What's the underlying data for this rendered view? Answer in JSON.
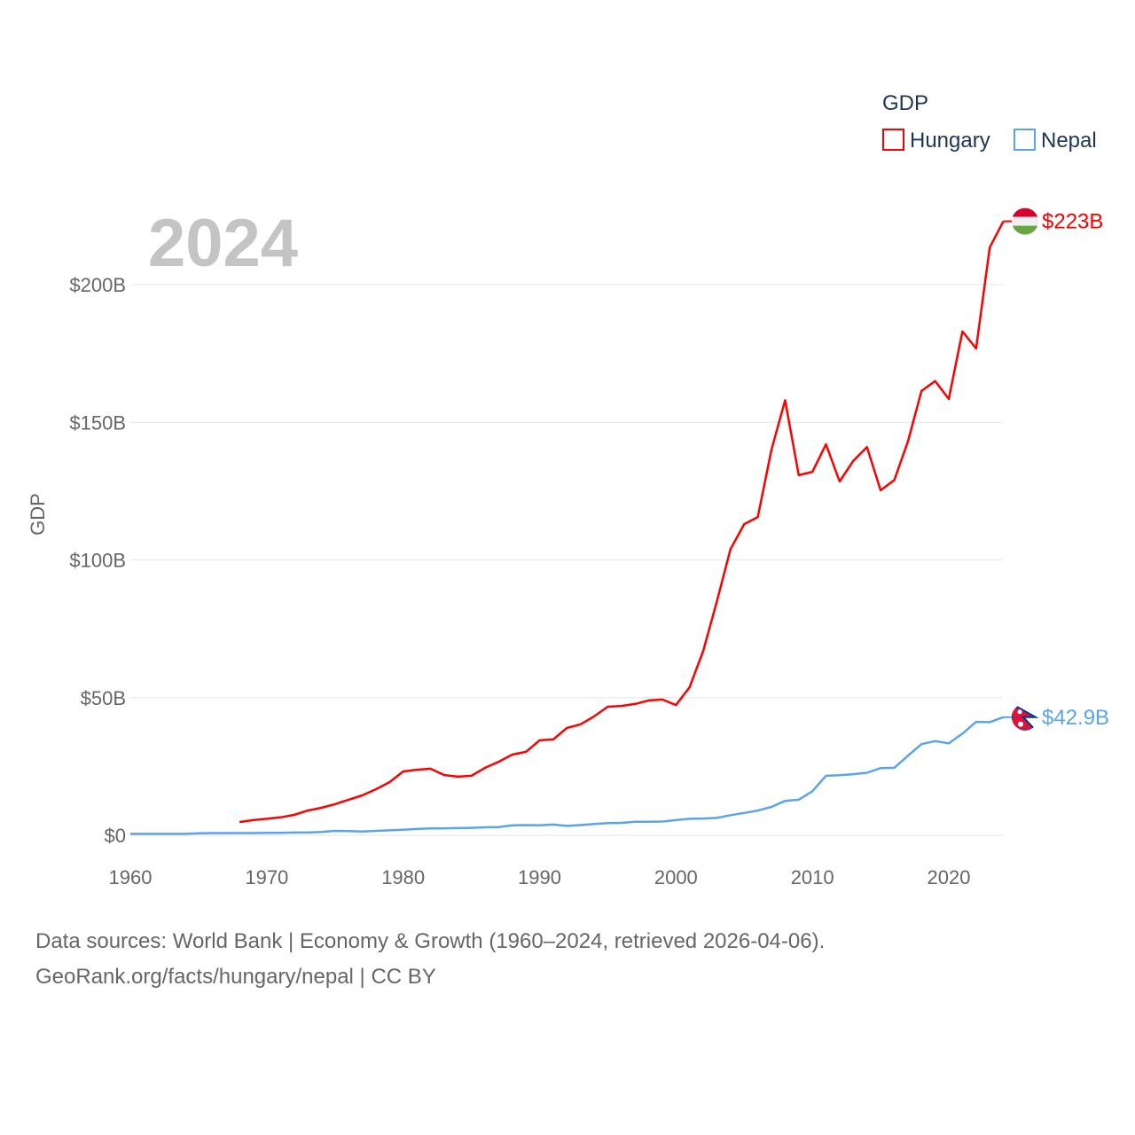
{
  "chart_data": {
    "type": "line",
    "title": "2024",
    "xlabel": "",
    "ylabel": "GDP",
    "xlim": [
      1960,
      2024
    ],
    "ylim": [
      0,
      200
    ],
    "x_ticks": [
      1960,
      1970,
      1980,
      1990,
      2000,
      2010,
      2020
    ],
    "x_tick_labels": [
      "1960",
      "1970",
      "1980",
      "1990",
      "2000",
      "2010",
      "2020"
    ],
    "y_ticks": [
      0,
      50,
      100,
      150,
      200
    ],
    "y_tick_labels": [
      "$0",
      "$50B",
      "$100B",
      "$150B",
      "$200B"
    ],
    "grid": true,
    "legend": {
      "title": "GDP",
      "placement": "top-right"
    },
    "series": [
      {
        "name": "Hungary",
        "color": "#ff0000",
        "end_label": "$223B",
        "start_year": 1968,
        "values": [
          4.8,
          5.5,
          6.0,
          6.5,
          7.4,
          9.0,
          10.0,
          11.3,
          12.9,
          14.5,
          16.7,
          19.3,
          23.2,
          23.8,
          24.2,
          21.9,
          21.3,
          21.6,
          24.5,
          26.7,
          29.3,
          30.3,
          34.5,
          34.8,
          39.0,
          40.3,
          43.2,
          46.7,
          47.0,
          47.7,
          49.0,
          49.3,
          47.3,
          53.8,
          67.0,
          85.0,
          104.0,
          113.0,
          115.6,
          140.0,
          158.0,
          130.8,
          132.0,
          142.0,
          128.5,
          136.0,
          141.0,
          125.3,
          129.0,
          143.0,
          161.4,
          165.0,
          158.5,
          183.0,
          176.8,
          213.5,
          223.0
        ]
      },
      {
        "name": "Nepal",
        "color": "#5ba4ec",
        "end_label": "$42.9B",
        "start_year": 1960,
        "values": [
          0.5,
          0.5,
          0.5,
          0.5,
          0.5,
          0.7,
          0.8,
          0.8,
          0.8,
          0.8,
          0.9,
          0.9,
          1.0,
          1.0,
          1.2,
          1.6,
          1.5,
          1.4,
          1.6,
          1.8,
          2.0,
          2.3,
          2.5,
          2.5,
          2.6,
          2.7,
          2.9,
          3.0,
          3.6,
          3.7,
          3.6,
          3.9,
          3.4,
          3.7,
          4.1,
          4.4,
          4.5,
          4.9,
          4.9,
          5.0,
          5.5,
          6.0,
          6.1,
          6.3,
          7.3,
          8.1,
          9.0,
          10.3,
          12.5,
          12.9,
          16.0,
          21.6,
          21.8,
          22.2,
          22.7,
          24.4,
          24.5,
          28.9,
          33.1,
          34.2,
          33.4,
          36.9,
          41.2,
          41.1,
          42.9
        ]
      }
    ]
  },
  "footer": {
    "line1": "Data sources: World Bank | Economy & Growth (1960–2024, retrieved 2026-04-06).",
    "line2": "GeoRank.org/facts/hungary/nepal | CC BY"
  }
}
